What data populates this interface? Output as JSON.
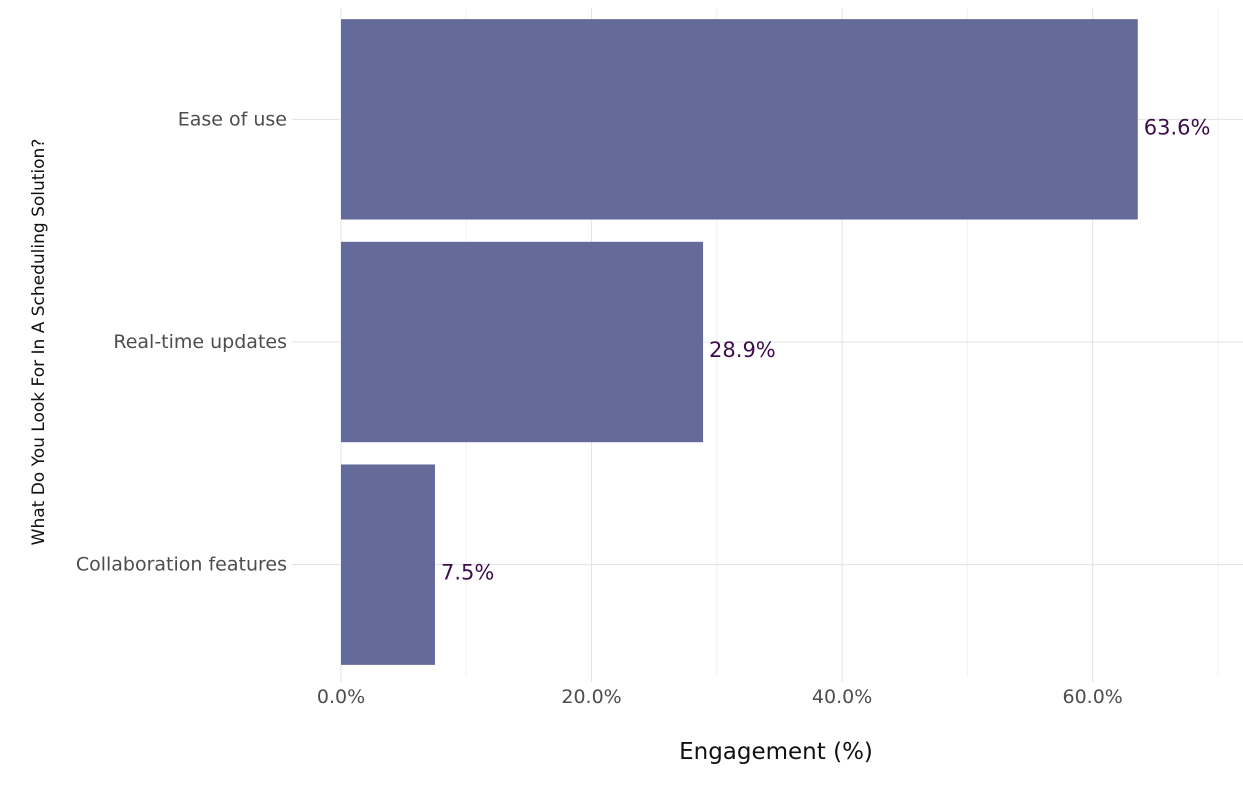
{
  "chart_data": {
    "type": "bar",
    "orientation": "horizontal",
    "categories": [
      "Ease of use",
      "Real-time updates",
      "Collaboration features"
    ],
    "values": [
      63.6,
      28.9,
      7.5
    ],
    "value_labels": [
      "63.6%",
      "28.9%",
      "7.5%"
    ],
    "title": "",
    "xlabel": "Engagement (%)",
    "ylabel": "What Do You Look For In A Scheduling Solution?",
    "xlim": [
      0,
      72
    ],
    "x_ticks": [
      0,
      20,
      40,
      60
    ],
    "x_tick_labels": [
      "0.0%",
      "20.0%",
      "40.0%",
      "60.0%"
    ],
    "grid": true,
    "legend": "none",
    "colors": {
      "bar": "#646a99",
      "data_label": "#3d0d4d",
      "grid_major": "#e3e3e3",
      "grid_minor": "#f2f2f2",
      "tick_label": "#4d4d4d",
      "axis_title": "#111111"
    }
  }
}
